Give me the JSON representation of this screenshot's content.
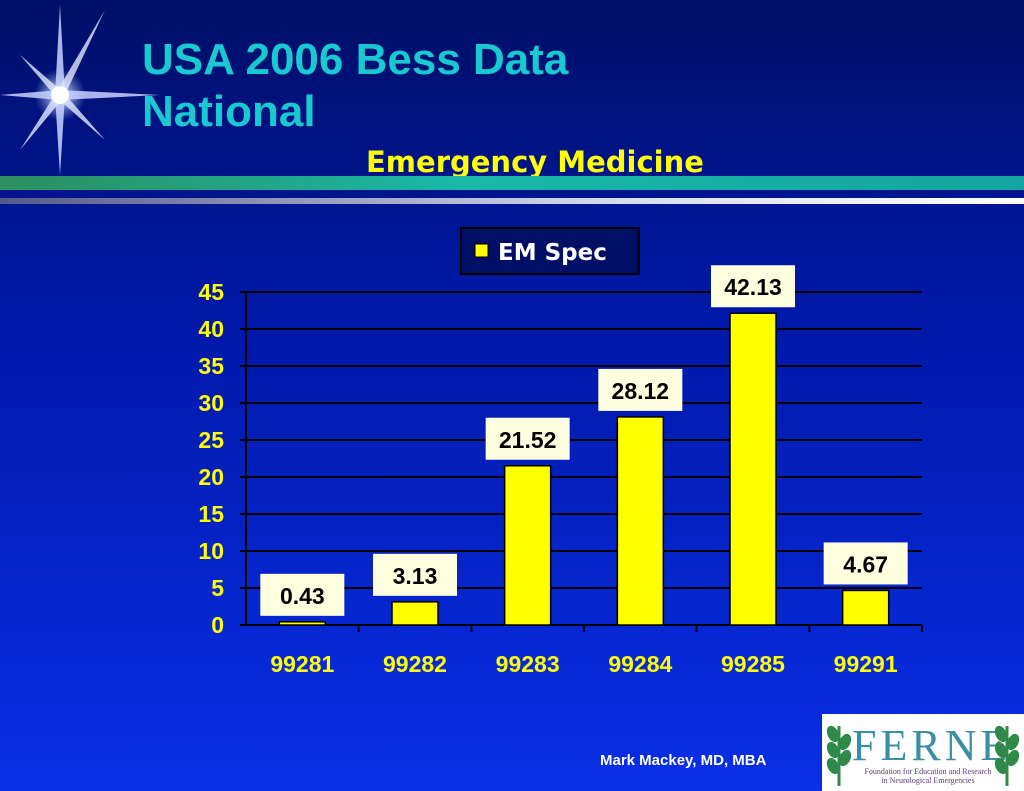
{
  "slide": {
    "title_line1": "USA 2006 Bess Data",
    "title_line2": "National",
    "footer": "Mark Mackey, MD, MBA",
    "logo": {
      "wordmark": "FERNE",
      "subtitle_line1": "Foundation for Education and Research",
      "subtitle_line2": "in Neurological Emergencies"
    }
  },
  "colors": {
    "title": "#19c9d2",
    "chart_title": "#ffff00",
    "bars": "#ffff00",
    "axis_text": "#ffff00",
    "label_bg": "#ffffe0"
  },
  "chart_data": {
    "type": "bar",
    "title": "Emergency Medicine",
    "categories": [
      "99281",
      "99282",
      "99283",
      "99284",
      "99285",
      "99291"
    ],
    "series": [
      {
        "name": "EM Spec",
        "values": [
          0.43,
          3.13,
          21.52,
          28.12,
          42.13,
          4.67
        ]
      }
    ],
    "value_labels": [
      "0.43",
      "3.13",
      "21.52",
      "28.12",
      "42.13",
      "4.67"
    ],
    "ylim": [
      0,
      45
    ],
    "yticks": [
      0,
      5,
      10,
      15,
      20,
      25,
      30,
      35,
      40,
      45
    ],
    "grid": true,
    "legend_position": "top"
  }
}
